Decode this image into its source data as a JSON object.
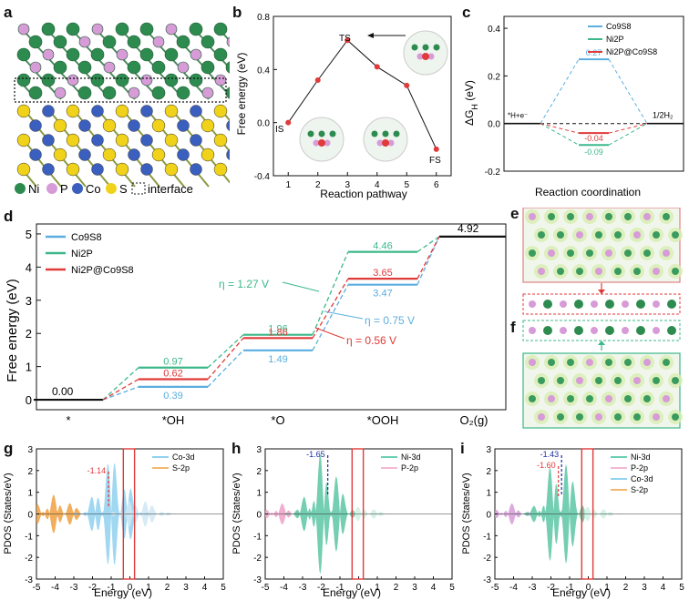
{
  "panel_labels": [
    "a",
    "b",
    "c",
    "d",
    "e",
    "f",
    "g",
    "h",
    "i"
  ],
  "panel_a": {
    "legend": [
      {
        "label": "Ni",
        "color": "#2e8b4f"
      },
      {
        "label": "P",
        "color": "#d79bd8"
      },
      {
        "label": "Co",
        "color": "#3a5fbf"
      },
      {
        "label": "S",
        "color": "#f0d21a"
      }
    ],
    "interface_label": "interface"
  },
  "panel_b": {
    "chart_data": {
      "type": "line",
      "xlabel": "Reaction pathway",
      "ylabel": "Free energy (eV)",
      "x": [
        1,
        2,
        3,
        4,
        5,
        6
      ],
      "y": [
        0.0,
        0.32,
        0.62,
        0.42,
        0.28,
        -0.2
      ],
      "xlim": [
        0.5,
        6.5
      ],
      "ylim": [
        -0.4,
        0.8
      ],
      "xticks": [
        "1",
        "2",
        "3",
        "4",
        "5",
        "6"
      ],
      "yticks": [
        "-0.4",
        "0.0",
        "0.4",
        "0.8"
      ],
      "annotations": [
        "IS",
        "TS",
        "FS"
      ]
    }
  },
  "panel_c": {
    "chart_data": {
      "type": "line",
      "xlabel": "Reaction coordination",
      "ylabel": "ΔG_H (eV)",
      "ylim": [
        -0.2,
        0.45
      ],
      "yticks": [
        "-0.2",
        "0.0",
        "0.2",
        "0.4"
      ],
      "series": [
        {
          "name": "Co9S8",
          "value": 0.27,
          "label": "0.27",
          "color": "#5aaee0"
        },
        {
          "name": "Ni2P",
          "value": -0.09,
          "label": "-0.09",
          "color": "#3cb88a"
        },
        {
          "name": "Ni2P@Co9S8",
          "value": -0.04,
          "label": "-0.04",
          "color": "#e03a3a"
        }
      ],
      "left_label": "*H+e⁻",
      "right_label": "1/2H₂"
    }
  },
  "panel_d": {
    "chart_data": {
      "type": "line",
      "ylabel": "Free energy (eV)",
      "categories": [
        "*",
        "*OH",
        "*O",
        "*OOH",
        "O₂(g)"
      ],
      "ylim": [
        -0.3,
        5.3
      ],
      "yticks": [
        "0",
        "1",
        "2",
        "3",
        "4",
        "5"
      ],
      "series": [
        {
          "name": "Co9S8",
          "values": [
            0.0,
            0.39,
            1.49,
            3.47,
            4.92
          ],
          "color": "#5aaee0"
        },
        {
          "name": "Ni2P",
          "values": [
            0.0,
            0.97,
            1.96,
            4.46,
            4.92
          ],
          "color": "#3cb88a"
        },
        {
          "name": "Ni2P@Co9S8",
          "values": [
            0.0,
            0.62,
            1.86,
            3.65,
            4.92
          ],
          "color": "#e03a3a"
        }
      ],
      "point_labels": {
        "start": "0.00",
        "end": "4.92",
        "co": [
          "0.39",
          "1.49",
          "3.47"
        ],
        "ni": [
          "0.97",
          "1.96",
          "4.46"
        ],
        "het": [
          "0.62",
          "1.86",
          "3.65"
        ]
      },
      "overpotentials": [
        {
          "text": "η = 1.27 V",
          "color": "#3cb88a"
        },
        {
          "text": "η = 0.75 V",
          "color": "#5aaee0"
        },
        {
          "text": "η = 0.56 V",
          "color": "#e03a3a"
        }
      ]
    }
  },
  "panel_g": {
    "chart_data": {
      "type": "area",
      "xlabel": "Energy (eV)",
      "ylabel": "PDOS (States/eV)",
      "xlim": [
        -5,
        5
      ],
      "ylim": [
        -3,
        3
      ],
      "xticks": [
        "-5",
        "-4",
        "-3",
        "-2",
        "-1",
        "0",
        "1",
        "2",
        "3",
        "4",
        "5"
      ],
      "yticks": [
        "-3",
        "-2",
        "-1",
        "0",
        "1",
        "2",
        "3"
      ],
      "series": [
        {
          "name": "Co-3d",
          "color": "#6cc3ea"
        },
        {
          "name": "S-2p",
          "color": "#f0a040"
        }
      ],
      "dband_center": "-1.14"
    }
  },
  "panel_h": {
    "chart_data": {
      "type": "area",
      "xlabel": "Energy (eV)",
      "ylabel": "PDOS (States/eV)",
      "xlim": [
        -5,
        5
      ],
      "ylim": [
        -3,
        3
      ],
      "xticks": [
        "-5",
        "-4",
        "-3",
        "-2",
        "-1",
        "0",
        "1",
        "2",
        "3",
        "4",
        "5"
      ],
      "yticks": [
        "-3",
        "-2",
        "-1",
        "0",
        "1",
        "2",
        "3"
      ],
      "series": [
        {
          "name": "Ni-3d",
          "color": "#3cbf99"
        },
        {
          "name": "P-2p",
          "color": "#f0a0c8"
        }
      ],
      "dband_center": "-1.65"
    }
  },
  "panel_i": {
    "chart_data": {
      "type": "area",
      "xlabel": "Energy (eV)",
      "ylabel": "PDOS (States/eV)",
      "xlim": [
        -5,
        5
      ],
      "ylim": [
        -3,
        3
      ],
      "xticks": [
        "-5",
        "-4",
        "-3",
        "-2",
        "-1",
        "0",
        "1",
        "2",
        "3",
        "4",
        "5"
      ],
      "yticks": [
        "-3",
        "-2",
        "-1",
        "0",
        "1",
        "2",
        "3"
      ],
      "series": [
        {
          "name": "Ni-3d",
          "color": "#3cbf99"
        },
        {
          "name": "P-2p",
          "color": "#f0a0c8"
        },
        {
          "name": "Co-3d",
          "color": "#6cc3ea"
        },
        {
          "name": "S-2p",
          "color": "#f0a040"
        }
      ],
      "dband_centers": [
        "-1.43",
        "-1.60"
      ]
    }
  }
}
